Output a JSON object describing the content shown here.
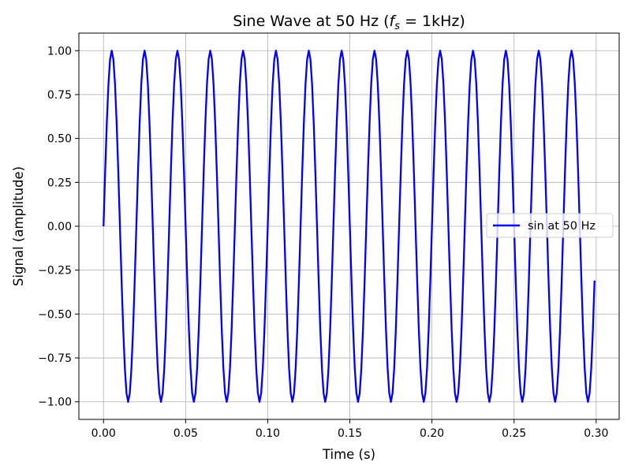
{
  "chart_data": {
    "type": "line",
    "title": {
      "prefix": "Sine Wave at 50 Hz (",
      "math_f": "f",
      "math_sub": "s",
      "suffix": " = 1kHz)"
    },
    "xlabel": "Time (s)",
    "ylabel": "Signal (amplitude)",
    "xlim": [
      -0.015,
      0.314
    ],
    "ylim": [
      -1.1,
      1.1
    ],
    "x_ticks": [
      0.0,
      0.05,
      0.1,
      0.15,
      0.2,
      0.25,
      0.3
    ],
    "x_tick_labels": [
      "0.00",
      "0.05",
      "0.10",
      "0.15",
      "0.20",
      "0.25",
      "0.30"
    ],
    "y_ticks": [
      1.0,
      0.75,
      0.5,
      0.25,
      0.0,
      -0.25,
      -0.5,
      -0.75,
      -1.0
    ],
    "y_tick_labels": [
      "1.00",
      "0.75",
      "0.50",
      "0.25",
      "0.00",
      "−0.25",
      "−0.50",
      "−0.75",
      "−1.00"
    ],
    "grid": true,
    "legend_position": "center-right",
    "series": [
      {
        "name": "sin at 50 Hz",
        "color": "#0000ff",
        "frequency_hz": 50,
        "sample_rate_hz": 1000,
        "x_start": 0.0,
        "x_end": 0.299,
        "x": [
          0.0,
          0.001,
          0.002,
          0.003,
          0.004,
          0.005,
          0.006,
          0.007,
          0.008,
          0.009,
          0.01,
          0.011,
          0.012,
          0.013,
          0.014,
          0.015,
          0.016,
          0.017,
          0.018,
          0.019,
          0.02,
          0.025,
          0.03,
          0.035,
          0.04,
          0.045,
          0.05,
          0.055,
          0.06,
          0.065,
          0.07,
          0.075,
          0.08,
          0.085,
          0.09,
          0.095,
          0.1,
          0.105,
          0.11,
          0.115,
          0.12,
          0.125,
          0.13,
          0.135,
          0.14,
          0.145,
          0.15,
          0.155,
          0.16,
          0.165,
          0.17,
          0.175,
          0.18,
          0.185,
          0.19,
          0.195,
          0.2,
          0.205,
          0.21,
          0.215,
          0.22,
          0.225,
          0.23,
          0.235,
          0.24,
          0.245,
          0.25,
          0.255,
          0.26,
          0.265,
          0.27,
          0.275,
          0.28,
          0.285,
          0.29,
          0.295,
          0.299
        ],
        "y": [
          0.0,
          0.309,
          0.588,
          0.809,
          0.951,
          1.0,
          0.951,
          0.809,
          0.588,
          0.309,
          0.0,
          -0.309,
          -0.588,
          -0.809,
          -0.951,
          -1.0,
          -0.951,
          -0.809,
          -0.588,
          -0.309,
          0.0,
          1.0,
          0.0,
          -1.0,
          0.0,
          1.0,
          0.0,
          -1.0,
          0.0,
          1.0,
          0.0,
          -1.0,
          0.0,
          1.0,
          0.0,
          -1.0,
          0.0,
          1.0,
          0.0,
          -1.0,
          0.0,
          1.0,
          0.0,
          -1.0,
          0.0,
          1.0,
          0.0,
          -1.0,
          0.0,
          1.0,
          0.0,
          -1.0,
          0.0,
          1.0,
          0.0,
          -1.0,
          0.0,
          1.0,
          0.0,
          -1.0,
          0.0,
          1.0,
          0.0,
          -1.0,
          0.0,
          1.0,
          0.0,
          -1.0,
          0.0,
          1.0,
          0.0,
          -1.0,
          0.0,
          1.0,
          0.0,
          -1.0,
          -0.309
        ]
      }
    ]
  }
}
